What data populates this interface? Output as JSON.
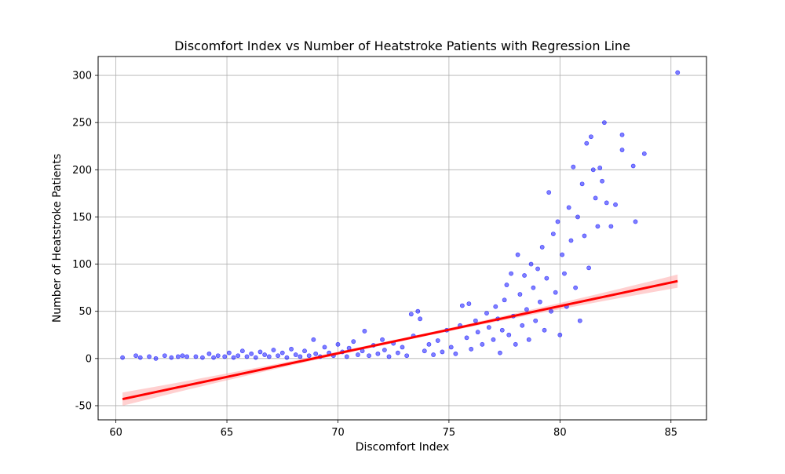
{
  "chart_data": {
    "type": "scatter",
    "title": "Discomfort Index vs Number of Heatstroke Patients with Regression Line",
    "xlabel": "Discomfort Index",
    "ylabel": "Number of Heatstroke Patients",
    "xlim": [
      59.2,
      86.6
    ],
    "ylim": [
      -65,
      320
    ],
    "xticks": [
      60,
      65,
      70,
      75,
      80,
      85
    ],
    "yticks": [
      -50,
      0,
      50,
      100,
      150,
      200,
      250,
      300
    ],
    "grid": true,
    "point_color": "#0000ff",
    "line_color": "#ff0000",
    "band_color": "#ffb0b0",
    "regression": {
      "x": [
        60.3,
        85.3
      ],
      "y": [
        -43,
        82
      ]
    },
    "points": [
      [
        60.3,
        1
      ],
      [
        60.9,
        3
      ],
      [
        61.1,
        1
      ],
      [
        61.5,
        2
      ],
      [
        61.8,
        0
      ],
      [
        62.2,
        3
      ],
      [
        62.5,
        1
      ],
      [
        62.8,
        2
      ],
      [
        63.0,
        3
      ],
      [
        63.2,
        2
      ],
      [
        63.6,
        2
      ],
      [
        63.9,
        1
      ],
      [
        64.2,
        5
      ],
      [
        64.4,
        1
      ],
      [
        64.6,
        3
      ],
      [
        64.9,
        2
      ],
      [
        65.1,
        6
      ],
      [
        65.3,
        1
      ],
      [
        65.5,
        3
      ],
      [
        65.7,
        8
      ],
      [
        65.9,
        2
      ],
      [
        66.1,
        5
      ],
      [
        66.3,
        1
      ],
      [
        66.5,
        7
      ],
      [
        66.7,
        4
      ],
      [
        66.9,
        2
      ],
      [
        67.1,
        9
      ],
      [
        67.3,
        3
      ],
      [
        67.5,
        6
      ],
      [
        67.7,
        1
      ],
      [
        67.9,
        10
      ],
      [
        68.1,
        4
      ],
      [
        68.3,
        2
      ],
      [
        68.5,
        8
      ],
      [
        68.7,
        3
      ],
      [
        68.9,
        20
      ],
      [
        69.0,
        5
      ],
      [
        69.2,
        2
      ],
      [
        69.4,
        12
      ],
      [
        69.6,
        6
      ],
      [
        69.8,
        3
      ],
      [
        70.0,
        15
      ],
      [
        70.2,
        7
      ],
      [
        70.4,
        2
      ],
      [
        70.5,
        11
      ],
      [
        70.7,
        18
      ],
      [
        70.9,
        4
      ],
      [
        71.1,
        8
      ],
      [
        71.2,
        29
      ],
      [
        71.4,
        3
      ],
      [
        71.6,
        14
      ],
      [
        71.8,
        5
      ],
      [
        72.0,
        20
      ],
      [
        72.1,
        9
      ],
      [
        72.3,
        2
      ],
      [
        72.5,
        16
      ],
      [
        72.7,
        6
      ],
      [
        72.9,
        12
      ],
      [
        73.1,
        3
      ],
      [
        73.3,
        47
      ],
      [
        73.4,
        24
      ],
      [
        73.6,
        50
      ],
      [
        73.7,
        42
      ],
      [
        73.9,
        8
      ],
      [
        74.1,
        15
      ],
      [
        74.3,
        4
      ],
      [
        74.5,
        19
      ],
      [
        74.7,
        7
      ],
      [
        74.9,
        30
      ],
      [
        75.1,
        12
      ],
      [
        75.3,
        5
      ],
      [
        75.5,
        35
      ],
      [
        75.6,
        56
      ],
      [
        75.8,
        22
      ],
      [
        75.9,
        58
      ],
      [
        76.0,
        10
      ],
      [
        76.2,
        40
      ],
      [
        76.3,
        28
      ],
      [
        76.5,
        15
      ],
      [
        76.7,
        48
      ],
      [
        76.8,
        33
      ],
      [
        77.0,
        20
      ],
      [
        77.1,
        55
      ],
      [
        77.2,
        42
      ],
      [
        77.3,
        6
      ],
      [
        77.4,
        30
      ],
      [
        77.5,
        62
      ],
      [
        77.6,
        78
      ],
      [
        77.7,
        25
      ],
      [
        77.8,
        90
      ],
      [
        77.9,
        45
      ],
      [
        78.0,
        15
      ],
      [
        78.1,
        110
      ],
      [
        78.2,
        68
      ],
      [
        78.3,
        35
      ],
      [
        78.4,
        88
      ],
      [
        78.5,
        52
      ],
      [
        78.6,
        20
      ],
      [
        78.7,
        100
      ],
      [
        78.8,
        75
      ],
      [
        78.9,
        40
      ],
      [
        79.0,
        95
      ],
      [
        79.1,
        60
      ],
      [
        79.2,
        118
      ],
      [
        79.3,
        30
      ],
      [
        79.4,
        85
      ],
      [
        79.5,
        176
      ],
      [
        79.6,
        50
      ],
      [
        79.7,
        132
      ],
      [
        79.8,
        70
      ],
      [
        79.9,
        145
      ],
      [
        80.0,
        25
      ],
      [
        80.1,
        110
      ],
      [
        80.2,
        90
      ],
      [
        80.3,
        55
      ],
      [
        80.4,
        160
      ],
      [
        80.5,
        125
      ],
      [
        80.6,
        203
      ],
      [
        80.7,
        75
      ],
      [
        80.8,
        150
      ],
      [
        80.9,
        40
      ],
      [
        81.0,
        185
      ],
      [
        81.1,
        130
      ],
      [
        81.2,
        228
      ],
      [
        81.3,
        96
      ],
      [
        81.4,
        235
      ],
      [
        81.5,
        200
      ],
      [
        81.6,
        170
      ],
      [
        81.7,
        140
      ],
      [
        81.8,
        202
      ],
      [
        81.9,
        188
      ],
      [
        82.0,
        250
      ],
      [
        82.1,
        165
      ],
      [
        82.3,
        140
      ],
      [
        82.5,
        163
      ],
      [
        82.8,
        221
      ],
      [
        82.8,
        237
      ],
      [
        83.3,
        204
      ],
      [
        83.4,
        145
      ],
      [
        83.8,
        217
      ],
      [
        85.3,
        303
      ]
    ]
  }
}
